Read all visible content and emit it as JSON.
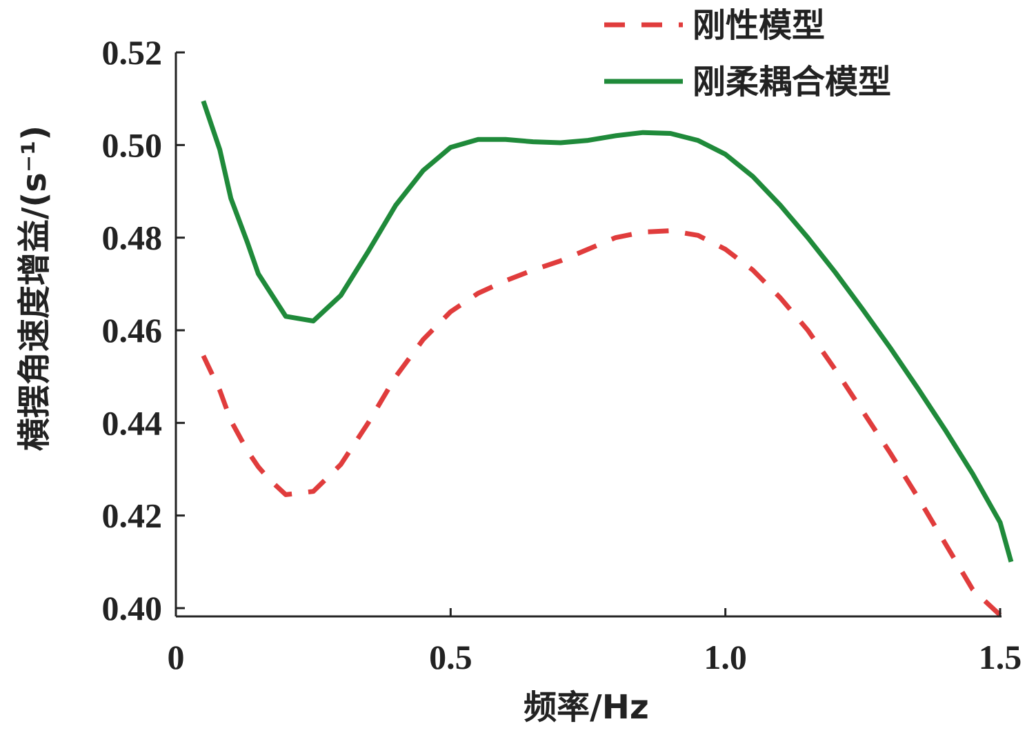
{
  "chart_data": {
    "type": "line",
    "xlabel": "频率/Hz",
    "ylabel": "横摆角速度增益/(s⁻¹)",
    "xlim": [
      0,
      1.5
    ],
    "ylim": [
      0.4,
      0.52
    ],
    "x_ticks": [
      "0",
      "0.5",
      "1.0",
      "1.5"
    ],
    "x_tick_values": [
      0,
      0.5,
      1.0,
      1.5
    ],
    "y_ticks": [
      "0.40",
      "0.42",
      "0.44",
      "0.46",
      "0.48",
      "0.50",
      "0.52"
    ],
    "y_tick_values": [
      0.4,
      0.42,
      0.44,
      0.46,
      0.48,
      0.5,
      0.52
    ],
    "grid": false,
    "legend_position": "top-right",
    "series": [
      {
        "name": "刚性模型",
        "color": "#e03c3c",
        "style": "dashed",
        "x": [
          0.05,
          0.08,
          0.1,
          0.13,
          0.15,
          0.17,
          0.2,
          0.25,
          0.3,
          0.35,
          0.4,
          0.45,
          0.5,
          0.55,
          0.6,
          0.65,
          0.7,
          0.75,
          0.8,
          0.85,
          0.9,
          0.95,
          1.0,
          1.05,
          1.1,
          1.15,
          1.2,
          1.25,
          1.3,
          1.35,
          1.4,
          1.45,
          1.5
        ],
        "y": [
          0.4545,
          0.447,
          0.4405,
          0.434,
          0.4305,
          0.4278,
          0.4245,
          0.4252,
          0.431,
          0.44,
          0.45,
          0.458,
          0.464,
          0.468,
          0.4707,
          0.473,
          0.475,
          0.4775,
          0.48,
          0.4812,
          0.4815,
          0.4805,
          0.4775,
          0.473,
          0.467,
          0.46,
          0.4515,
          0.4425,
          0.4335,
          0.424,
          0.414,
          0.404,
          0.3985
        ]
      },
      {
        "name": "刚柔耦合模型",
        "color": "#1f8a3a",
        "style": "solid",
        "x": [
          0.05,
          0.08,
          0.1,
          0.13,
          0.15,
          0.2,
          0.25,
          0.3,
          0.35,
          0.4,
          0.45,
          0.5,
          0.55,
          0.6,
          0.65,
          0.7,
          0.75,
          0.8,
          0.85,
          0.9,
          0.95,
          1.0,
          1.05,
          1.1,
          1.15,
          1.2,
          1.25,
          1.3,
          1.35,
          1.4,
          1.45,
          1.5,
          1.52
        ],
        "y": [
          0.5095,
          0.499,
          0.4885,
          0.479,
          0.4722,
          0.463,
          0.462,
          0.4675,
          0.477,
          0.487,
          0.4945,
          0.4995,
          0.5012,
          0.5012,
          0.5007,
          0.5005,
          0.501,
          0.502,
          0.5027,
          0.5025,
          0.501,
          0.498,
          0.4932,
          0.487,
          0.48,
          0.4725,
          0.4645,
          0.4562,
          0.4475,
          0.4385,
          0.429,
          0.4185,
          0.41
        ]
      }
    ]
  }
}
